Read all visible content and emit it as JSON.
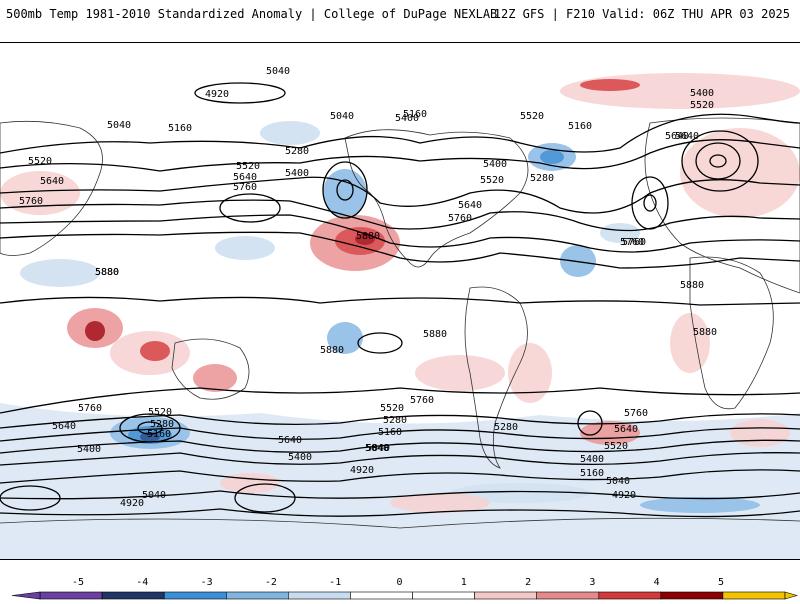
{
  "header": {
    "title": "500mb Temp 1981-2010 Standardized Anomaly | College of DuPage NEXLAB",
    "run_info": "12Z GFS | F210 Valid: 06Z THU APR 03 2025"
  },
  "map": {
    "contour_labels": [
      "5040",
      "4920",
      "5040",
      "5160",
      "5040",
      "5160",
      "5280",
      "5520",
      "5640",
      "5760",
      "5400",
      "5520",
      "5640",
      "5760",
      "5520",
      "5640",
      "5760",
      "5400",
      "5880",
      "5160",
      "5400",
      "5520",
      "5280",
      "5640",
      "5760",
      "5400",
      "5520",
      "5640",
      "5760",
      "5880",
      "5880",
      "5880",
      "5880",
      "5880",
      "5880",
      "5520",
      "5280",
      "5160",
      "5640",
      "5400",
      "5760",
      "5640",
      "5400",
      "5040",
      "5040",
      "4920",
      "5760",
      "5520",
      "5280",
      "5160",
      "5040",
      "4920",
      "5280",
      "5760",
      "5640",
      "5520",
      "5400",
      "5160",
      "5040",
      "4920"
    ],
    "colors": {
      "warm_light": "#f7d3d3",
      "warm_mid": "#ec9a9a",
      "warm_strong": "#d8474a",
      "warm_deep": "#a8111a",
      "cold_light": "#cfe0f1",
      "cold_mid": "#8fbde6",
      "cold_strong": "#3f8fd3",
      "cold_deep": "#1f4b8f"
    }
  },
  "colorbar": {
    "ticks": [
      "-5",
      "-4",
      "-3",
      "-2",
      "-1",
      "0",
      "1",
      "2",
      "3",
      "4",
      "5"
    ],
    "colors": [
      "#6b3fa0",
      "#1f3565",
      "#3b8fd6",
      "#7fb5e0",
      "#c8dcef",
      "#ffffff",
      "#ffffff",
      "#f4c8c8",
      "#e58a8a",
      "#d23a3a",
      "#8b0000",
      "#f3c200"
    ]
  }
}
